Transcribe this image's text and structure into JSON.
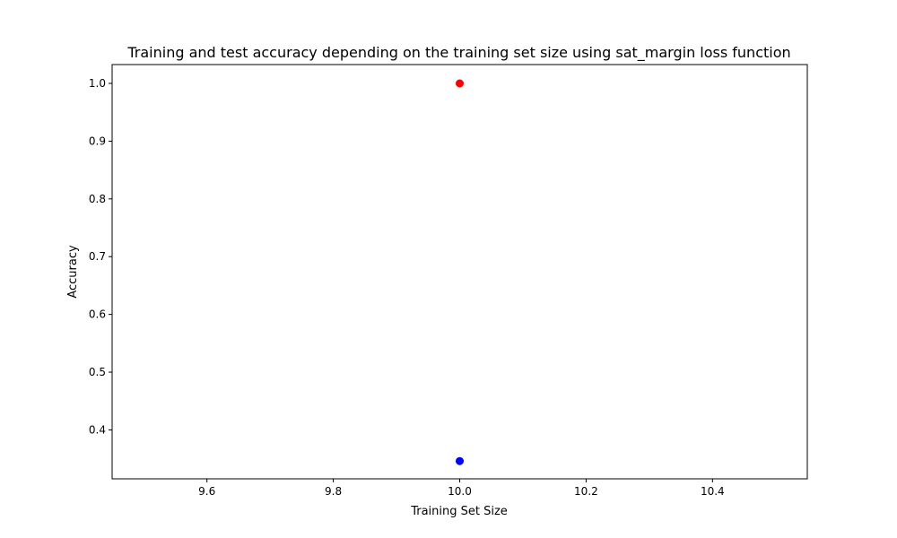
{
  "chart_data": {
    "type": "scatter",
    "title": "Training and test accuracy depending on the training set size using sat_margin loss function",
    "xlabel": "Training Set Size",
    "ylabel": "Accuracy",
    "xlim": [
      9.45,
      10.55
    ],
    "ylim": [
      0.3153,
      1.0326
    ],
    "xticks": [
      9.6,
      9.8,
      10.0,
      10.2,
      10.4
    ],
    "xtick_labels": [
      "9.6",
      "9.8",
      "10.0",
      "10.2",
      "10.4"
    ],
    "yticks": [
      0.4,
      0.5,
      0.6,
      0.7,
      0.8,
      0.9,
      1.0
    ],
    "ytick_labels": [
      "0.4",
      "0.5",
      "0.6",
      "0.7",
      "0.8",
      "0.9",
      "1.0"
    ],
    "grid": false,
    "series": [
      {
        "color": "#ff0000",
        "points": [
          {
            "x": 10.0,
            "y": 1.0
          }
        ]
      },
      {
        "color": "#0000ff",
        "points": [
          {
            "x": 10.0,
            "y": 0.346
          }
        ]
      }
    ]
  }
}
